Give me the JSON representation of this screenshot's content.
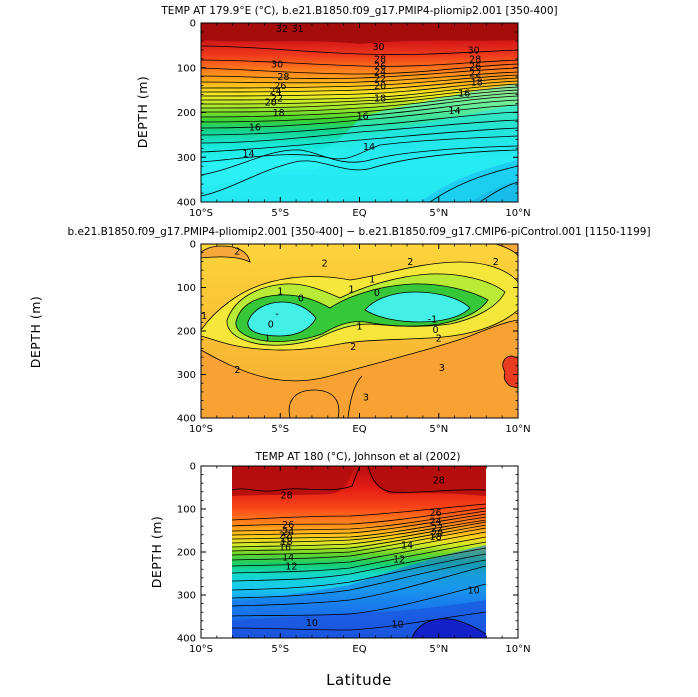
{
  "chart_data": [
    {
      "type": "contour",
      "title": "TEMP AT 179.9°E (°C), b.e21.B1850.f09_g17.PMIP4-pliomip2.001 [350-400]",
      "ylabel": "DEPTH (m)",
      "xlabel": "",
      "xlim": [
        -10,
        10
      ],
      "ylim": [
        400,
        0
      ],
      "x_ticks": [
        -10,
        -5,
        0,
        5,
        10
      ],
      "x_tick_labels": [
        "10°S",
        "5°S",
        "EQ",
        "5°N",
        "10°N"
      ],
      "y_ticks": [
        0,
        100,
        200,
        300,
        400
      ],
      "y_tick_labels": [
        "0",
        "100",
        "200",
        "300",
        "400"
      ],
      "contour_interval": 1,
      "level_range": [
        12,
        32
      ],
      "contour_labels": [
        {
          "lat": -4.9,
          "depth": 12,
          "text": "32"
        },
        {
          "lat": -3.9,
          "depth": 12,
          "text": "31"
        },
        {
          "lat": 1.2,
          "depth": 52,
          "text": "30"
        },
        {
          "lat": 7.2,
          "depth": 60,
          "text": "30"
        },
        {
          "lat": -5.2,
          "depth": 92,
          "text": "30"
        },
        {
          "lat": 1.3,
          "depth": 80,
          "text": "28"
        },
        {
          "lat": 7.3,
          "depth": 80,
          "text": "28"
        },
        {
          "lat": -4.8,
          "depth": 120,
          "text": "28"
        },
        {
          "lat": 1.3,
          "depth": 96,
          "text": "26"
        },
        {
          "lat": -5.0,
          "depth": 140,
          "text": "26"
        },
        {
          "lat": 7.3,
          "depth": 96,
          "text": "26"
        },
        {
          "lat": 1.3,
          "depth": 108,
          "text": "24"
        },
        {
          "lat": -5.3,
          "depth": 152,
          "text": "24"
        },
        {
          "lat": 1.3,
          "depth": 124,
          "text": "22"
        },
        {
          "lat": -5.2,
          "depth": 168,
          "text": "22"
        },
        {
          "lat": 7.3,
          "depth": 112,
          "text": "22"
        },
        {
          "lat": -5.6,
          "depth": 176,
          "text": "20"
        },
        {
          "lat": 1.3,
          "depth": 140,
          "text": "20"
        },
        {
          "lat": 7.4,
          "depth": 132,
          "text": "18"
        },
        {
          "lat": 1.3,
          "depth": 168,
          "text": "18"
        },
        {
          "lat": -5.1,
          "depth": 200,
          "text": "18"
        },
        {
          "lat": 6.6,
          "depth": 156,
          "text": "16"
        },
        {
          "lat": 0.2,
          "depth": 208,
          "text": "16"
        },
        {
          "lat": -6.6,
          "depth": 232,
          "text": "16"
        },
        {
          "lat": 6.0,
          "depth": 196,
          "text": "14"
        },
        {
          "lat": 0.6,
          "depth": 276,
          "text": "14"
        },
        {
          "lat": -7.0,
          "depth": 292,
          "text": "14"
        }
      ]
    },
    {
      "type": "contour",
      "title": "b.e21.B1850.f09_g17.PMIP4-pliomip2.001 [350-400] − b.e21.B1850.f09_g17.CMIP6-piControl.001 [1150-1199]",
      "ylabel": "DEPTH (m)",
      "xlabel": "",
      "xlim": [
        -10,
        10
      ],
      "ylim": [
        400,
        0
      ],
      "x_ticks": [
        -10,
        -5,
        0,
        5,
        10
      ],
      "x_tick_labels": [
        "10°S",
        "5°S",
        "EQ",
        "5°N",
        "10°N"
      ],
      "y_ticks": [
        0,
        100,
        200,
        300,
        400
      ],
      "y_tick_labels": [
        "0",
        "100",
        "200",
        "300",
        "400"
      ],
      "contour_interval": 1,
      "level_range": [
        -1,
        4
      ],
      "contour_labels": [
        {
          "lat": -7.7,
          "depth": 16,
          "text": "2"
        },
        {
          "lat": -2.2,
          "depth": 44,
          "text": "2"
        },
        {
          "lat": 3.2,
          "depth": 40,
          "text": "2"
        },
        {
          "lat": 8.6,
          "depth": 40,
          "text": "2"
        },
        {
          "lat": -5.0,
          "depth": 108,
          "text": "1"
        },
        {
          "lat": -0.5,
          "depth": 104,
          "text": "1"
        },
        {
          "lat": 0.8,
          "depth": 80,
          "text": "1"
        },
        {
          "lat": -3.7,
          "depth": 124,
          "text": "0"
        },
        {
          "lat": 1.1,
          "depth": 112,
          "text": "0"
        },
        {
          "lat": 4.8,
          "depth": 196,
          "text": "0"
        },
        {
          "lat": -5.6,
          "depth": 184,
          "text": "0"
        },
        {
          "lat": 4.6,
          "depth": 172,
          "text": "-1"
        },
        {
          "lat": -5.2,
          "depth": 160,
          "text": "-"
        },
        {
          "lat": -9.8,
          "depth": 164,
          "text": "1"
        },
        {
          "lat": 0.0,
          "depth": 188,
          "text": "1"
        },
        {
          "lat": 5.0,
          "depth": 216,
          "text": "2"
        },
        {
          "lat": -5.8,
          "depth": 216,
          "text": "1"
        },
        {
          "lat": -0.4,
          "depth": 236,
          "text": "2"
        },
        {
          "lat": -7.7,
          "depth": 288,
          "text": "2"
        },
        {
          "lat": 5.2,
          "depth": 284,
          "text": "3"
        },
        {
          "lat": 0.4,
          "depth": 352,
          "text": "3"
        }
      ]
    },
    {
      "type": "contour",
      "title": "TEMP AT 180 (°C), Johnson et al (2002)",
      "ylabel": "DEPTH (m)",
      "xlabel": "Latitude",
      "xlim": [
        -10,
        10
      ],
      "ylim": [
        400,
        0
      ],
      "data_lat_range": [
        -8,
        8
      ],
      "x_ticks": [
        -10,
        -5,
        0,
        5,
        10
      ],
      "x_tick_labels": [
        "10°S",
        "5°S",
        "EQ",
        "5°N",
        "10°N"
      ],
      "y_ticks": [
        0,
        100,
        200,
        300,
        400
      ],
      "y_tick_labels": [
        "0",
        "100",
        "200",
        "300",
        "400"
      ],
      "contour_interval": 1,
      "level_range": [
        6,
        30
      ],
      "contour_labels": [
        {
          "lat": 5.0,
          "depth": 32,
          "text": "28"
        },
        {
          "lat": -4.6,
          "depth": 68,
          "text": "28"
        },
        {
          "lat": -4.5,
          "depth": 136,
          "text": "26"
        },
        {
          "lat": 4.8,
          "depth": 108,
          "text": "26"
        },
        {
          "lat": -4.5,
          "depth": 152,
          "text": "24"
        },
        {
          "lat": 4.8,
          "depth": 128,
          "text": "24"
        },
        {
          "lat": -4.7,
          "depth": 160,
          "text": "22"
        },
        {
          "lat": 4.9,
          "depth": 144,
          "text": "22"
        },
        {
          "lat": -4.6,
          "depth": 168,
          "text": "20"
        },
        {
          "lat": 4.9,
          "depth": 156,
          "text": "20"
        },
        {
          "lat": -4.6,
          "depth": 176,
          "text": "18"
        },
        {
          "lat": 4.8,
          "depth": 164,
          "text": "18"
        },
        {
          "lat": -4.7,
          "depth": 188,
          "text": "16"
        },
        {
          "lat": 3.0,
          "depth": 184,
          "text": "14"
        },
        {
          "lat": -4.5,
          "depth": 212,
          "text": "14"
        },
        {
          "lat": -4.3,
          "depth": 232,
          "text": "12"
        },
        {
          "lat": 2.5,
          "depth": 216,
          "text": "12"
        },
        {
          "lat": 7.2,
          "depth": 288,
          "text": "10"
        },
        {
          "lat": -3.0,
          "depth": 364,
          "text": "10"
        },
        {
          "lat": 2.4,
          "depth": 368,
          "text": "10"
        }
      ]
    }
  ]
}
